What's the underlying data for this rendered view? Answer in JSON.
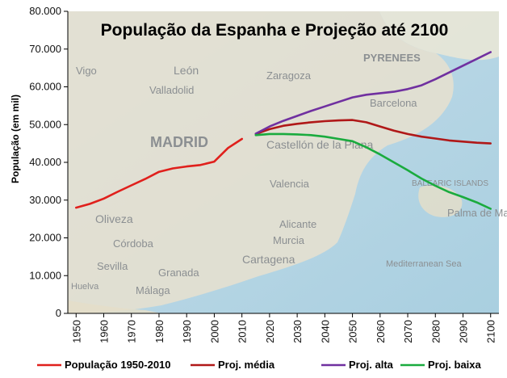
{
  "chart_data": {
    "type": "line",
    "title": "População da Espanha e Projeção até 2100",
    "ylabel": "População (em mil)",
    "xlabel": "",
    "ylim": [
      0,
      80000
    ],
    "xlim": [
      1947,
      2103
    ],
    "yticks": [
      "0",
      "10.000",
      "20.000",
      "30.000",
      "40.000",
      "50.000",
      "60.000",
      "70.000",
      "80.000"
    ],
    "ytick_values": [
      0,
      10000,
      20000,
      30000,
      40000,
      50000,
      60000,
      70000,
      80000
    ],
    "xticks": [
      "1950",
      "1960",
      "1970",
      "1980",
      "1990",
      "2000",
      "2010",
      "2020",
      "2030",
      "2040",
      "2050",
      "2060",
      "2070",
      "2080",
      "2090",
      "2100"
    ],
    "xtick_values": [
      1950,
      1960,
      1970,
      1980,
      1990,
      2000,
      2010,
      2020,
      2030,
      2040,
      2050,
      2060,
      2070,
      2080,
      2090,
      2100
    ],
    "grid": false,
    "legend": "bottom",
    "series": [
      {
        "name": "População 1950-2010",
        "color": "#e0201c",
        "x": [
          1950,
          1955,
          1960,
          1965,
          1970,
          1975,
          1980,
          1985,
          1990,
          1995,
          2000,
          2005,
          2010
        ],
        "y": [
          28000,
          29000,
          30400,
          32200,
          33900,
          35600,
          37500,
          38400,
          38900,
          39300,
          40200,
          43800,
          46200
        ]
      },
      {
        "name": "Proj. média",
        "color": "#b01818",
        "x": [
          2015,
          2020,
          2025,
          2030,
          2035,
          2040,
          2045,
          2050,
          2055,
          2060,
          2065,
          2070,
          2075,
          2080,
          2085,
          2090,
          2095,
          2100
        ],
        "y": [
          47500,
          48800,
          49700,
          50200,
          50600,
          50900,
          51100,
          51200,
          50600,
          49500,
          48400,
          47500,
          46800,
          46300,
          45800,
          45500,
          45200,
          45000
        ]
      },
      {
        "name": "Proj. alta",
        "color": "#7030a0",
        "x": [
          2015,
          2020,
          2025,
          2030,
          2035,
          2040,
          2045,
          2050,
          2055,
          2060,
          2065,
          2070,
          2075,
          2080,
          2085,
          2090,
          2095,
          2100
        ],
        "y": [
          47600,
          49500,
          51000,
          52300,
          53600,
          54800,
          56000,
          57200,
          57900,
          58300,
          58700,
          59400,
          60400,
          62000,
          63800,
          65600,
          67400,
          69200
        ]
      },
      {
        "name": "Proj. baixa",
        "color": "#1aab3e",
        "x": [
          2015,
          2020,
          2025,
          2030,
          2035,
          2040,
          2045,
          2050,
          2055,
          2060,
          2065,
          2070,
          2075,
          2080,
          2085,
          2090,
          2095,
          2100
        ],
        "y": [
          47200,
          47500,
          47500,
          47400,
          47200,
          46800,
          46200,
          45600,
          44000,
          42100,
          40000,
          37900,
          35700,
          33800,
          32100,
          30800,
          29400,
          27700
        ]
      }
    ]
  },
  "background_labels": [
    "MADRID",
    "Zaragoza",
    "León",
    "Valladolid",
    "Vigo",
    "PYRENEES",
    "Barcelona",
    "Castellón de la Plana",
    "Valencia",
    "Alicante",
    "Murcia",
    "Cartagena",
    "Oliveza",
    "Córdoba",
    "Sevilla",
    "Granada",
    "Málaga",
    "Huelva",
    "Palma de Mallorca",
    "Mediterranean Sea",
    "BALEARIC ISLANDS"
  ]
}
